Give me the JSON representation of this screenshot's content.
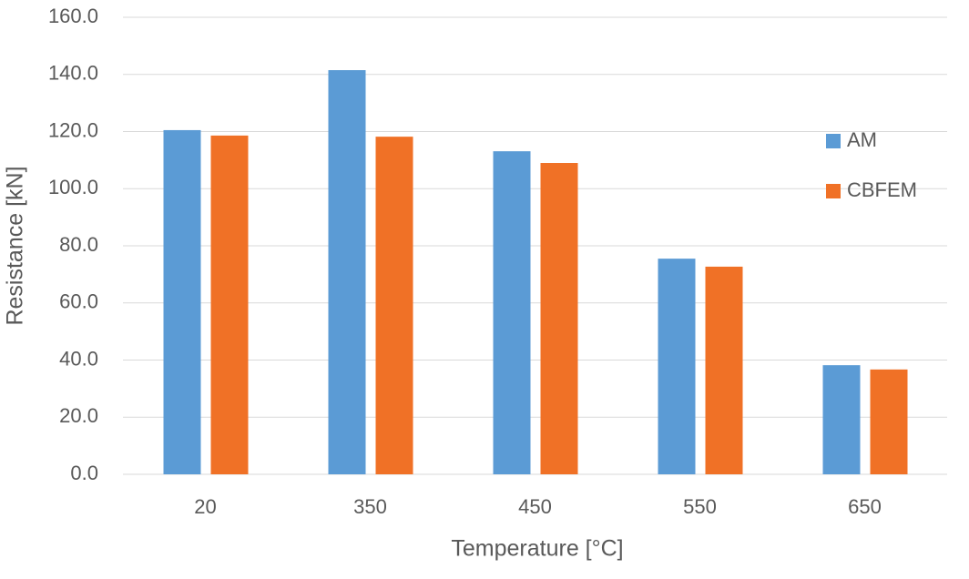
{
  "chart_data": {
    "type": "bar",
    "x_label": "Temperature [°C]",
    "y_label": "Resistance [kN]",
    "categories": [
      "20",
      "350",
      "450",
      "550",
      "650"
    ],
    "series": [
      {
        "name": "AM",
        "color": "#5b9bd5",
        "values": [
          120.5,
          141.5,
          113.1,
          75.5,
          38.2
        ]
      },
      {
        "name": "CBFEM",
        "color": "#f07126",
        "values": [
          118.6,
          118.2,
          109.0,
          72.7,
          36.7
        ]
      }
    ],
    "ylim": [
      0,
      160
    ],
    "yticks": [
      {
        "value": 0,
        "label": "0.0"
      },
      {
        "value": 20,
        "label": "20.0"
      },
      {
        "value": 40,
        "label": "40.0"
      },
      {
        "value": 60,
        "label": "60.0"
      },
      {
        "value": 80,
        "label": "80.0"
      },
      {
        "value": 100,
        "label": "100.0"
      },
      {
        "value": 120,
        "label": "120.0"
      },
      {
        "value": 140,
        "label": "140.0"
      },
      {
        "value": 160,
        "label": "160.0"
      }
    ],
    "grid": true,
    "legend": "right"
  }
}
